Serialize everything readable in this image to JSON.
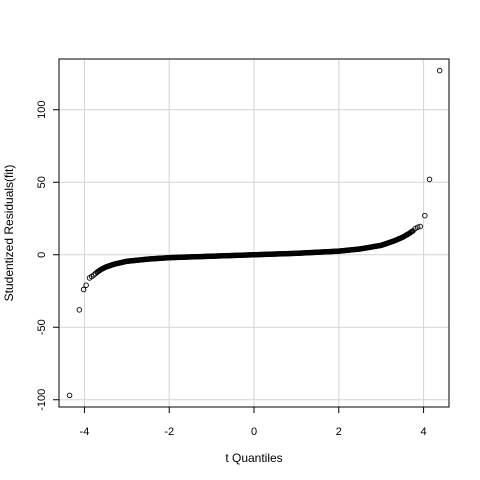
{
  "chart_data": {
    "type": "scatter",
    "xlabel": "t Quantiles",
    "ylabel": "Studentized Residuals(fit)",
    "xlim": [
      -4.6,
      4.6
    ],
    "ylim": [
      -105,
      135
    ],
    "x_ticks": [
      -4,
      -2,
      0,
      2,
      4
    ],
    "y_ticks": [
      -100,
      -50,
      0,
      50,
      100
    ],
    "x_tick_labels": [
      "-4",
      "-2",
      "0",
      "2",
      "4"
    ],
    "y_tick_labels": [
      "-100",
      "-50",
      "0",
      "50",
      "100"
    ],
    "grid": true,
    "grid_color": "#d3d3d3",
    "point_color": "#000000",
    "outliers": [
      {
        "x": -4.35,
        "y": -97
      },
      {
        "x": -4.12,
        "y": -38
      },
      {
        "x": -4.02,
        "y": -24
      },
      {
        "x": -3.96,
        "y": -21
      },
      {
        "x": -3.88,
        "y": -16
      },
      {
        "x": -3.83,
        "y": -15
      },
      {
        "x": -3.78,
        "y": -14
      },
      {
        "x": -3.74,
        "y": -13
      },
      {
        "x": 3.8,
        "y": 18
      },
      {
        "x": 3.86,
        "y": 19
      },
      {
        "x": 3.92,
        "y": 19.5
      },
      {
        "x": 4.03,
        "y": 27
      },
      {
        "x": 4.14,
        "y": 52
      },
      {
        "x": 4.38,
        "y": 127
      }
    ],
    "curve_points": [
      {
        "x": -3.7,
        "y": -12
      },
      {
        "x": -3.6,
        "y": -10
      },
      {
        "x": -3.5,
        "y": -8.5
      },
      {
        "x": -3.3,
        "y": -6.5
      },
      {
        "x": -3.0,
        "y": -4.5
      },
      {
        "x": -2.5,
        "y": -3
      },
      {
        "x": -2.0,
        "y": -2
      },
      {
        "x": -1.0,
        "y": -1
      },
      {
        "x": 0.0,
        "y": 0
      },
      {
        "x": 1.0,
        "y": 1
      },
      {
        "x": 2.0,
        "y": 2.5
      },
      {
        "x": 2.5,
        "y": 4
      },
      {
        "x": 3.0,
        "y": 6.5
      },
      {
        "x": 3.3,
        "y": 9.5
      },
      {
        "x": 3.5,
        "y": 12
      },
      {
        "x": 3.65,
        "y": 14.5
      },
      {
        "x": 3.75,
        "y": 16.5
      }
    ]
  }
}
